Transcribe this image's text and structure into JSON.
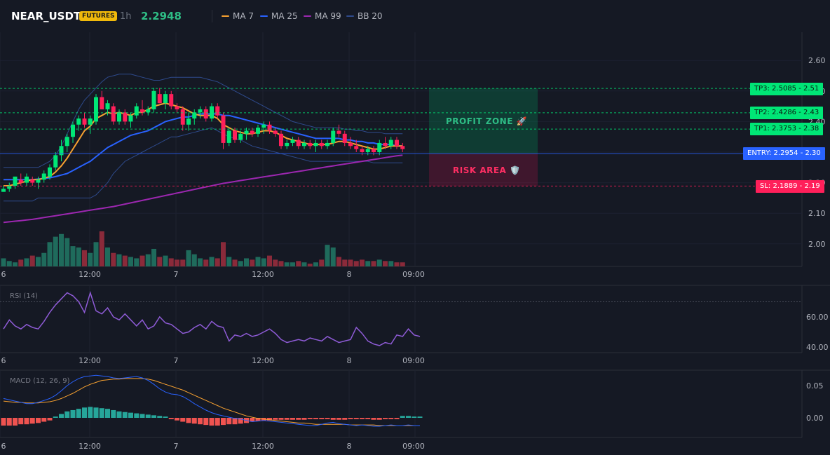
{
  "header": {
    "symbol": "NEAR_USDT",
    "badge": "FUTURES",
    "interval": "1h",
    "price": "2.2948"
  },
  "legend": [
    {
      "label": "MA 7",
      "color": "#f7a130"
    },
    {
      "label": "MA 25",
      "color": "#2962ff"
    },
    {
      "label": "MA 99",
      "color": "#9c27b0"
    },
    {
      "label": "BB 20",
      "color": "#2e4a8c"
    }
  ],
  "price_axis": [
    "2.60",
    "2.50",
    "2.40",
    "2.30",
    "2.20",
    "2.10",
    "2.00"
  ],
  "time_axis": [
    "6",
    "12:00",
    "7",
    "12:00",
    "8",
    "09:00"
  ],
  "levels": {
    "tp3": {
      "value": 2.5085,
      "label": "TP3: 2.5085",
      "axis": "2.51",
      "color": "#00e676"
    },
    "tp2": {
      "value": 2.4286,
      "label": "TP2: 2.4286",
      "axis": "2.43",
      "color": "#00e676"
    },
    "tp1": {
      "value": 2.3753,
      "label": "TP1: 2.3753",
      "axis": "2.38",
      "color": "#00e676"
    },
    "entry": {
      "value": 2.2954,
      "label": "ENTRY: 2.2954",
      "axis": "2.30",
      "color": "#2962ff"
    },
    "sl": {
      "value": 2.1889,
      "label": "SL: 2.1889",
      "axis": "2.19",
      "color": "#ff1f5a"
    }
  },
  "zones": {
    "profit": "PROFIT ZONE 🚀",
    "risk": "RISK AREA 🛡️"
  },
  "rsi": {
    "label": "RSI (14)",
    "axis": [
      "60.00",
      "40.00"
    ],
    "values": [
      52,
      58,
      54,
      52,
      55,
      53,
      52,
      57,
      63,
      68,
      72,
      76,
      74,
      70,
      63,
      76,
      64,
      62,
      66,
      60,
      58,
      62,
      58,
      54,
      58,
      52,
      54,
      60,
      56,
      55,
      52,
      49,
      50,
      53,
      55,
      52,
      57,
      54,
      53,
      44,
      48,
      47,
      49,
      47,
      48,
      50,
      52,
      49,
      45,
      43,
      44,
      45,
      44,
      46,
      45,
      44,
      47,
      45,
      43,
      44,
      45,
      53,
      49,
      44,
      42,
      41,
      43,
      42,
      48,
      47,
      52,
      48,
      47
    ]
  },
  "macd": {
    "label": "MACD (12, 26, 9)",
    "axis": [
      "0.05",
      "0.00"
    ],
    "macd_line": [
      0.03,
      0.028,
      0.026,
      0.024,
      0.022,
      0.022,
      0.024,
      0.027,
      0.03,
      0.035,
      0.042,
      0.05,
      0.056,
      0.061,
      0.064,
      0.065,
      0.066,
      0.065,
      0.064,
      0.062,
      0.061,
      0.062,
      0.063,
      0.064,
      0.062,
      0.058,
      0.052,
      0.045,
      0.04,
      0.037,
      0.036,
      0.033,
      0.028,
      0.022,
      0.017,
      0.012,
      0.008,
      0.005,
      0.003,
      0.001,
      -0.001,
      -0.002,
      -0.004,
      -0.006,
      -0.005,
      -0.004,
      -0.005,
      -0.006,
      -0.007,
      -0.008,
      -0.009,
      -0.01,
      -0.011,
      -0.012,
      -0.012,
      -0.01,
      -0.008,
      -0.007,
      -0.009,
      -0.01,
      -0.011,
      -0.012,
      -0.011,
      -0.012,
      -0.013,
      -0.013,
      -0.012,
      -0.011,
      -0.012,
      -0.012,
      -0.011,
      -0.012,
      -0.012
    ],
    "signal_line": [
      0.026,
      0.025,
      0.024,
      0.024,
      0.023,
      0.023,
      0.023,
      0.024,
      0.025,
      0.027,
      0.03,
      0.034,
      0.038,
      0.043,
      0.048,
      0.052,
      0.055,
      0.058,
      0.059,
      0.06,
      0.06,
      0.061,
      0.061,
      0.061,
      0.061,
      0.06,
      0.058,
      0.055,
      0.052,
      0.049,
      0.046,
      0.043,
      0.039,
      0.035,
      0.031,
      0.027,
      0.023,
      0.019,
      0.015,
      0.012,
      0.009,
      0.006,
      0.003,
      0.001,
      -0.001,
      -0.002,
      -0.003,
      -0.004,
      -0.005,
      -0.006,
      -0.007,
      -0.008,
      -0.008,
      -0.009,
      -0.01,
      -0.01,
      -0.01,
      -0.01,
      -0.01,
      -0.01,
      -0.011,
      -0.011,
      -0.011,
      -0.011,
      -0.011,
      -0.012,
      -0.012,
      -0.012,
      -0.012,
      -0.012,
      -0.012,
      -0.012,
      -0.012
    ],
    "histogram": [
      -0.012,
      -0.012,
      -0.012,
      -0.01,
      -0.01,
      -0.009,
      -0.008,
      -0.006,
      -0.004,
      0.002,
      0.006,
      0.01,
      0.012,
      0.014,
      0.016,
      0.017,
      0.016,
      0.015,
      0.014,
      0.012,
      0.01,
      0.009,
      0.008,
      0.007,
      0.006,
      0.005,
      0.004,
      0.003,
      0.002,
      -0.002,
      -0.004,
      -0.006,
      -0.008,
      -0.009,
      -0.01,
      -0.011,
      -0.012,
      -0.012,
      -0.011,
      -0.01,
      -0.01,
      -0.009,
      -0.008,
      -0.006,
      -0.005,
      -0.004,
      -0.004,
      -0.003,
      -0.003,
      -0.003,
      -0.003,
      -0.003,
      -0.003,
      -0.002,
      -0.002,
      -0.002,
      -0.002,
      -0.003,
      -0.003,
      -0.003,
      -0.002,
      -0.002,
      -0.002,
      -0.002,
      -0.003,
      -0.003,
      -0.002,
      -0.002,
      -0.002,
      0.003,
      0.003,
      0.002,
      0.002
    ]
  },
  "chart_data": {
    "type": "candlestick",
    "candles": [
      [
        2.17,
        2.19,
        2.17,
        2.18
      ],
      [
        2.18,
        2.2,
        2.17,
        2.19
      ],
      [
        2.19,
        2.22,
        2.18,
        2.22
      ],
      [
        2.21,
        2.23,
        2.19,
        2.2
      ],
      [
        2.2,
        2.23,
        2.19,
        2.22
      ],
      [
        2.21,
        2.22,
        2.19,
        2.2
      ],
      [
        2.2,
        2.22,
        2.18,
        2.21
      ],
      [
        2.21,
        2.24,
        2.2,
        2.23
      ],
      [
        2.22,
        2.26,
        2.21,
        2.25
      ],
      [
        2.25,
        2.3,
        2.24,
        2.29
      ],
      [
        2.29,
        2.34,
        2.27,
        2.32
      ],
      [
        2.32,
        2.36,
        2.3,
        2.35
      ],
      [
        2.35,
        2.4,
        2.33,
        2.39
      ],
      [
        2.39,
        2.42,
        2.37,
        2.41
      ],
      [
        2.41,
        2.43,
        2.38,
        2.39
      ],
      [
        2.39,
        2.42,
        2.36,
        2.41
      ],
      [
        2.4,
        2.49,
        2.39,
        2.48
      ],
      [
        2.48,
        2.5,
        2.44,
        2.44
      ],
      [
        2.44,
        2.47,
        2.42,
        2.46
      ],
      [
        2.45,
        2.46,
        2.39,
        2.4
      ],
      [
        2.4,
        2.44,
        2.39,
        2.43
      ],
      [
        2.43,
        2.44,
        2.39,
        2.4
      ],
      [
        2.4,
        2.43,
        2.38,
        2.42
      ],
      [
        2.42,
        2.46,
        2.41,
        2.45
      ],
      [
        2.44,
        2.47,
        2.42,
        2.43
      ],
      [
        2.43,
        2.45,
        2.42,
        2.44
      ],
      [
        2.44,
        2.51,
        2.43,
        2.5
      ],
      [
        2.49,
        2.51,
        2.46,
        2.46
      ],
      [
        2.46,
        2.5,
        2.44,
        2.49
      ],
      [
        2.49,
        2.5,
        2.44,
        2.45
      ],
      [
        2.45,
        2.46,
        2.43,
        2.44
      ],
      [
        2.44,
        2.45,
        2.37,
        2.39
      ],
      [
        2.39,
        2.43,
        2.37,
        2.41
      ],
      [
        2.41,
        2.44,
        2.39,
        2.43
      ],
      [
        2.43,
        2.45,
        2.41,
        2.44
      ],
      [
        2.44,
        2.45,
        2.4,
        2.41
      ],
      [
        2.41,
        2.46,
        2.4,
        2.45
      ],
      [
        2.45,
        2.46,
        2.41,
        2.42
      ],
      [
        2.42,
        2.43,
        2.31,
        2.33
      ],
      [
        2.33,
        2.38,
        2.32,
        2.37
      ],
      [
        2.37,
        2.38,
        2.33,
        2.34
      ],
      [
        2.34,
        2.37,
        2.33,
        2.36
      ],
      [
        2.36,
        2.38,
        2.34,
        2.37
      ],
      [
        2.37,
        2.38,
        2.35,
        2.36
      ],
      [
        2.36,
        2.39,
        2.35,
        2.38
      ],
      [
        2.38,
        2.4,
        2.36,
        2.39
      ],
      [
        2.39,
        2.4,
        2.36,
        2.37
      ],
      [
        2.37,
        2.38,
        2.35,
        2.36
      ],
      [
        2.36,
        2.37,
        2.31,
        2.32
      ],
      [
        2.32,
        2.34,
        2.31,
        2.33
      ],
      [
        2.33,
        2.35,
        2.32,
        2.34
      ],
      [
        2.34,
        2.35,
        2.31,
        2.32
      ],
      [
        2.32,
        2.34,
        2.31,
        2.33
      ],
      [
        2.33,
        2.34,
        2.31,
        2.32
      ],
      [
        2.32,
        2.34,
        2.3,
        2.33
      ],
      [
        2.33,
        2.34,
        2.31,
        2.32
      ],
      [
        2.32,
        2.34,
        2.31,
        2.33
      ],
      [
        2.33,
        2.38,
        2.32,
        2.37
      ],
      [
        2.37,
        2.39,
        2.35,
        2.36
      ],
      [
        2.36,
        2.37,
        2.32,
        2.33
      ],
      [
        2.33,
        2.35,
        2.31,
        2.32
      ],
      [
        2.32,
        2.34,
        2.3,
        2.31
      ],
      [
        2.31,
        2.32,
        2.29,
        2.3
      ],
      [
        2.3,
        2.32,
        2.29,
        2.31
      ],
      [
        2.31,
        2.32,
        2.29,
        2.3
      ],
      [
        2.3,
        2.34,
        2.29,
        2.33
      ],
      [
        2.33,
        2.35,
        2.31,
        2.32
      ],
      [
        2.32,
        2.35,
        2.31,
        2.34
      ],
      [
        2.34,
        2.35,
        2.31,
        2.32
      ],
      [
        2.32,
        2.33,
        2.3,
        2.31
      ]
    ],
    "volume": [
      6,
      4,
      3,
      5,
      6,
      8,
      7,
      10,
      18,
      22,
      24,
      21,
      15,
      14,
      12,
      10,
      18,
      26,
      14,
      10,
      9,
      8,
      7,
      6,
      8,
      9,
      13,
      7,
      8,
      6,
      5,
      5,
      12,
      9,
      6,
      5,
      7,
      6,
      18,
      7,
      5,
      4,
      6,
      5,
      7,
      6,
      8,
      5,
      4,
      3,
      3,
      4,
      3,
      2,
      3,
      5,
      16,
      14,
      7,
      5,
      5,
      4,
      5,
      4,
      4,
      5,
      4,
      4,
      3,
      3
    ],
    "ma7": [
      2.19,
      2.19,
      2.195,
      2.2,
      2.205,
      2.21,
      2.21,
      2.215,
      2.22,
      2.235,
      2.255,
      2.28,
      2.31,
      2.34,
      2.37,
      2.385,
      2.41,
      2.42,
      2.43,
      2.425,
      2.43,
      2.425,
      2.42,
      2.43,
      2.43,
      2.44,
      2.45,
      2.455,
      2.46,
      2.455,
      2.45,
      2.445,
      2.435,
      2.425,
      2.42,
      2.42,
      2.42,
      2.41,
      2.39,
      2.38,
      2.37,
      2.365,
      2.36,
      2.36,
      2.365,
      2.37,
      2.37,
      2.365,
      2.355,
      2.345,
      2.34,
      2.335,
      2.33,
      2.325,
      2.325,
      2.325,
      2.325,
      2.33,
      2.335,
      2.335,
      2.33,
      2.325,
      2.32,
      2.315,
      2.31,
      2.31,
      2.315,
      2.32,
      2.32,
      2.32
    ],
    "ma25": [
      2.21,
      2.21,
      2.21,
      2.21,
      2.21,
      2.21,
      2.212,
      2.214,
      2.216,
      2.22,
      2.225,
      2.23,
      2.24,
      2.25,
      2.26,
      2.27,
      2.285,
      2.3,
      2.315,
      2.325,
      2.335,
      2.345,
      2.355,
      2.36,
      2.365,
      2.37,
      2.38,
      2.39,
      2.4,
      2.405,
      2.41,
      2.415,
      2.415,
      2.42,
      2.425,
      2.425,
      2.425,
      2.425,
      2.42,
      2.42,
      2.415,
      2.41,
      2.405,
      2.4,
      2.395,
      2.39,
      2.385,
      2.38,
      2.375,
      2.37,
      2.365,
      2.36,
      2.355,
      2.35,
      2.345,
      2.345,
      2.345,
      2.345,
      2.345,
      2.34,
      2.34,
      2.335,
      2.335,
      2.33,
      2.33,
      2.325,
      2.325,
      2.325,
      2.32,
      2.32
    ],
    "ma99": [
      2.07,
      2.072,
      2.074,
      2.076,
      2.078,
      2.08,
      2.083,
      2.086,
      2.089,
      2.092,
      2.095,
      2.098,
      2.101,
      2.104,
      2.107,
      2.11,
      2.113,
      2.116,
      2.119,
      2.122,
      2.126,
      2.13,
      2.134,
      2.138,
      2.142,
      2.146,
      2.15,
      2.154,
      2.158,
      2.162,
      2.166,
      2.17,
      2.174,
      2.178,
      2.182,
      2.186,
      2.19,
      2.194,
      2.198,
      2.201,
      2.204,
      2.207,
      2.21,
      2.213,
      2.216,
      2.219,
      2.222,
      2.225,
      2.228,
      2.231,
      2.234,
      2.237,
      2.24,
      2.243,
      2.246,
      2.249,
      2.252,
      2.255,
      2.258,
      2.261,
      2.264,
      2.267,
      2.27,
      2.273,
      2.276,
      2.279,
      2.282,
      2.285,
      2.288,
      2.29
    ],
    "bb_upper": [
      2.25,
      2.25,
      2.25,
      2.25,
      2.25,
      2.25,
      2.25,
      2.26,
      2.27,
      2.29,
      2.32,
      2.36,
      2.4,
      2.44,
      2.47,
      2.49,
      2.51,
      2.53,
      2.545,
      2.55,
      2.555,
      2.555,
      2.555,
      2.55,
      2.545,
      2.54,
      2.535,
      2.535,
      2.54,
      2.545,
      2.545,
      2.545,
      2.545,
      2.545,
      2.545,
      2.54,
      2.535,
      2.53,
      2.52,
      2.51,
      2.5,
      2.49,
      2.48,
      2.47,
      2.46,
      2.45,
      2.44,
      2.43,
      2.42,
      2.41,
      2.4,
      2.395,
      2.39,
      2.385,
      2.38,
      2.38,
      2.38,
      2.38,
      2.38,
      2.375,
      2.375,
      2.37,
      2.37,
      2.365,
      2.365,
      2.365,
      2.36,
      2.36,
      2.36,
      2.36
    ],
    "bb_lower": [
      2.14,
      2.14,
      2.14,
      2.14,
      2.14,
      2.14,
      2.15,
      2.15,
      2.15,
      2.15,
      2.15,
      2.15,
      2.15,
      2.15,
      2.15,
      2.15,
      2.16,
      2.18,
      2.2,
      2.23,
      2.25,
      2.27,
      2.28,
      2.29,
      2.3,
      2.31,
      2.32,
      2.33,
      2.34,
      2.35,
      2.35,
      2.355,
      2.36,
      2.365,
      2.37,
      2.375,
      2.38,
      2.37,
      2.36,
      2.35,
      2.345,
      2.34,
      2.33,
      2.32,
      2.315,
      2.31,
      2.305,
      2.3,
      2.295,
      2.29,
      2.285,
      2.28,
      2.275,
      2.27,
      2.27,
      2.27,
      2.27,
      2.27,
      2.27,
      2.27,
      2.27,
      2.27,
      2.27,
      2.27,
      2.265,
      2.265,
      2.265,
      2.265,
      2.265,
      2.265
    ]
  }
}
